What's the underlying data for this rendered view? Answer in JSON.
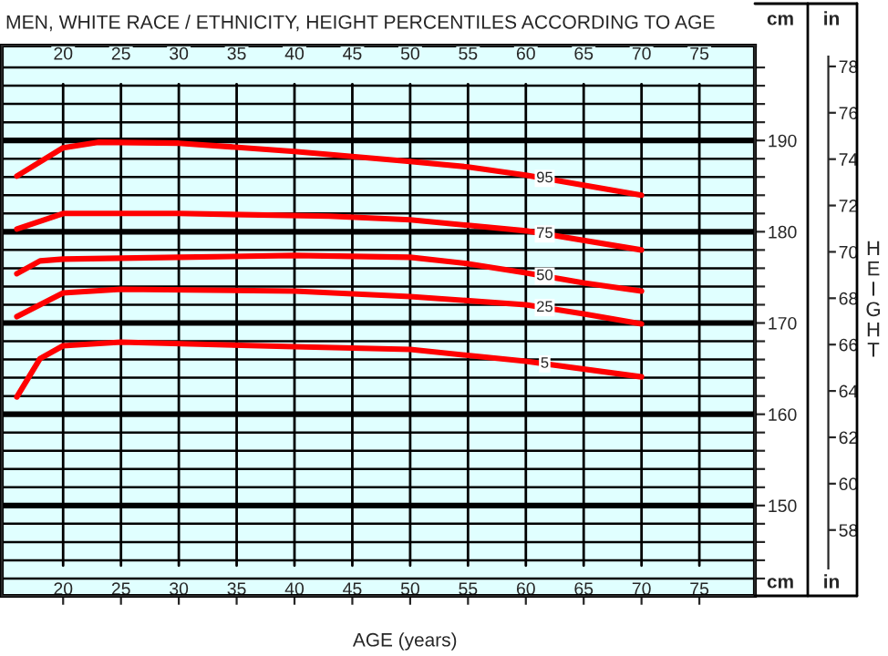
{
  "chart_data": {
    "type": "line",
    "title": "MEN, WHITE RACE / ETHNICITY, HEIGHT PERCENTILES ACCORDING TO AGE",
    "xlabel": "AGE (years)",
    "y2label": "HEIGHT",
    "annotations": [
      "cm",
      "in",
      "cm",
      "in"
    ],
    "series": [
      {
        "name": "95",
        "color": "#ff0000",
        "x": [
          16,
          20,
          23,
          30,
          40,
          50,
          55,
          60,
          70
        ],
        "values": [
          186.1,
          189.2,
          189.8,
          189.7,
          188.8,
          187.7,
          187.1,
          186.2,
          184.0
        ]
      },
      {
        "name": "75",
        "color": "#ff0000",
        "x": [
          16,
          20,
          30,
          43,
          50,
          55,
          60,
          70
        ],
        "values": [
          180.3,
          182.0,
          182.0,
          181.7,
          181.3,
          180.7,
          180.1,
          178.0
        ]
      },
      {
        "name": "50",
        "color": "#ff0000",
        "x": [
          16,
          18,
          20,
          30,
          40,
          50,
          55,
          60,
          65,
          70
        ],
        "values": [
          175.4,
          176.8,
          177.0,
          177.2,
          177.4,
          177.2,
          176.5,
          175.5,
          174.4,
          173.5
        ]
      },
      {
        "name": "25",
        "color": "#ff0000",
        "x": [
          16,
          20,
          25,
          40,
          50,
          60,
          65,
          70
        ],
        "values": [
          170.7,
          173.3,
          173.7,
          173.5,
          172.9,
          172.0,
          171.0,
          169.9
        ]
      },
      {
        "name": "5",
        "color": "#ff0000",
        "x": [
          16,
          18,
          20,
          25,
          40,
          50,
          60,
          70
        ],
        "values": [
          161.9,
          166.1,
          167.5,
          167.9,
          167.4,
          167.1,
          165.8,
          164.1
        ]
      }
    ],
    "xlim": [
      14.7,
      79.8
    ],
    "xticks": [
      20,
      25,
      30,
      35,
      40,
      45,
      50,
      55,
      60,
      65,
      70,
      75
    ],
    "x2lim": [
      14.7,
      79.8
    ],
    "x2ticks": [
      20,
      25,
      30,
      35,
      40,
      45,
      50,
      55,
      60,
      65,
      70,
      75
    ],
    "ylim": [
      140.1,
      200.4
    ],
    "yticks": [
      {
        "value": 142,
        "label": null
      },
      {
        "value": 144,
        "label": null
      },
      {
        "value": 146,
        "label": null
      },
      {
        "value": 148,
        "label": null
      },
      150,
      {
        "value": 152,
        "label": null
      },
      {
        "value": 154,
        "label": null
      },
      {
        "value": 156,
        "label": null
      },
      {
        "value": 158,
        "label": null
      },
      160,
      {
        "value": 162,
        "label": null
      },
      {
        "value": 164,
        "label": null
      },
      {
        "value": 166,
        "label": null
      },
      {
        "value": 168,
        "label": null
      },
      170,
      {
        "value": 172,
        "label": null
      },
      {
        "value": 174,
        "label": null
      },
      {
        "value": 176,
        "label": null
      },
      {
        "value": 178,
        "label": null
      },
      180,
      {
        "value": 182,
        "label": null
      },
      {
        "value": 184,
        "label": null
      },
      {
        "value": 186,
        "label": null
      },
      {
        "value": 188,
        "label": null
      },
      190,
      {
        "value": 192,
        "label": null
      },
      {
        "value": 194,
        "label": null
      },
      {
        "value": 196,
        "label": null
      },
      {
        "value": 198,
        "label": null
      }
    ],
    "y2lim": [
      55.16,
      78.9
    ],
    "y2ticks": [
      58,
      60,
      62,
      64,
      66,
      68,
      70,
      72,
      74,
      76,
      78
    ],
    "grid": true,
    "legend": false,
    "marker": "none",
    "line_style": "solid"
  }
}
